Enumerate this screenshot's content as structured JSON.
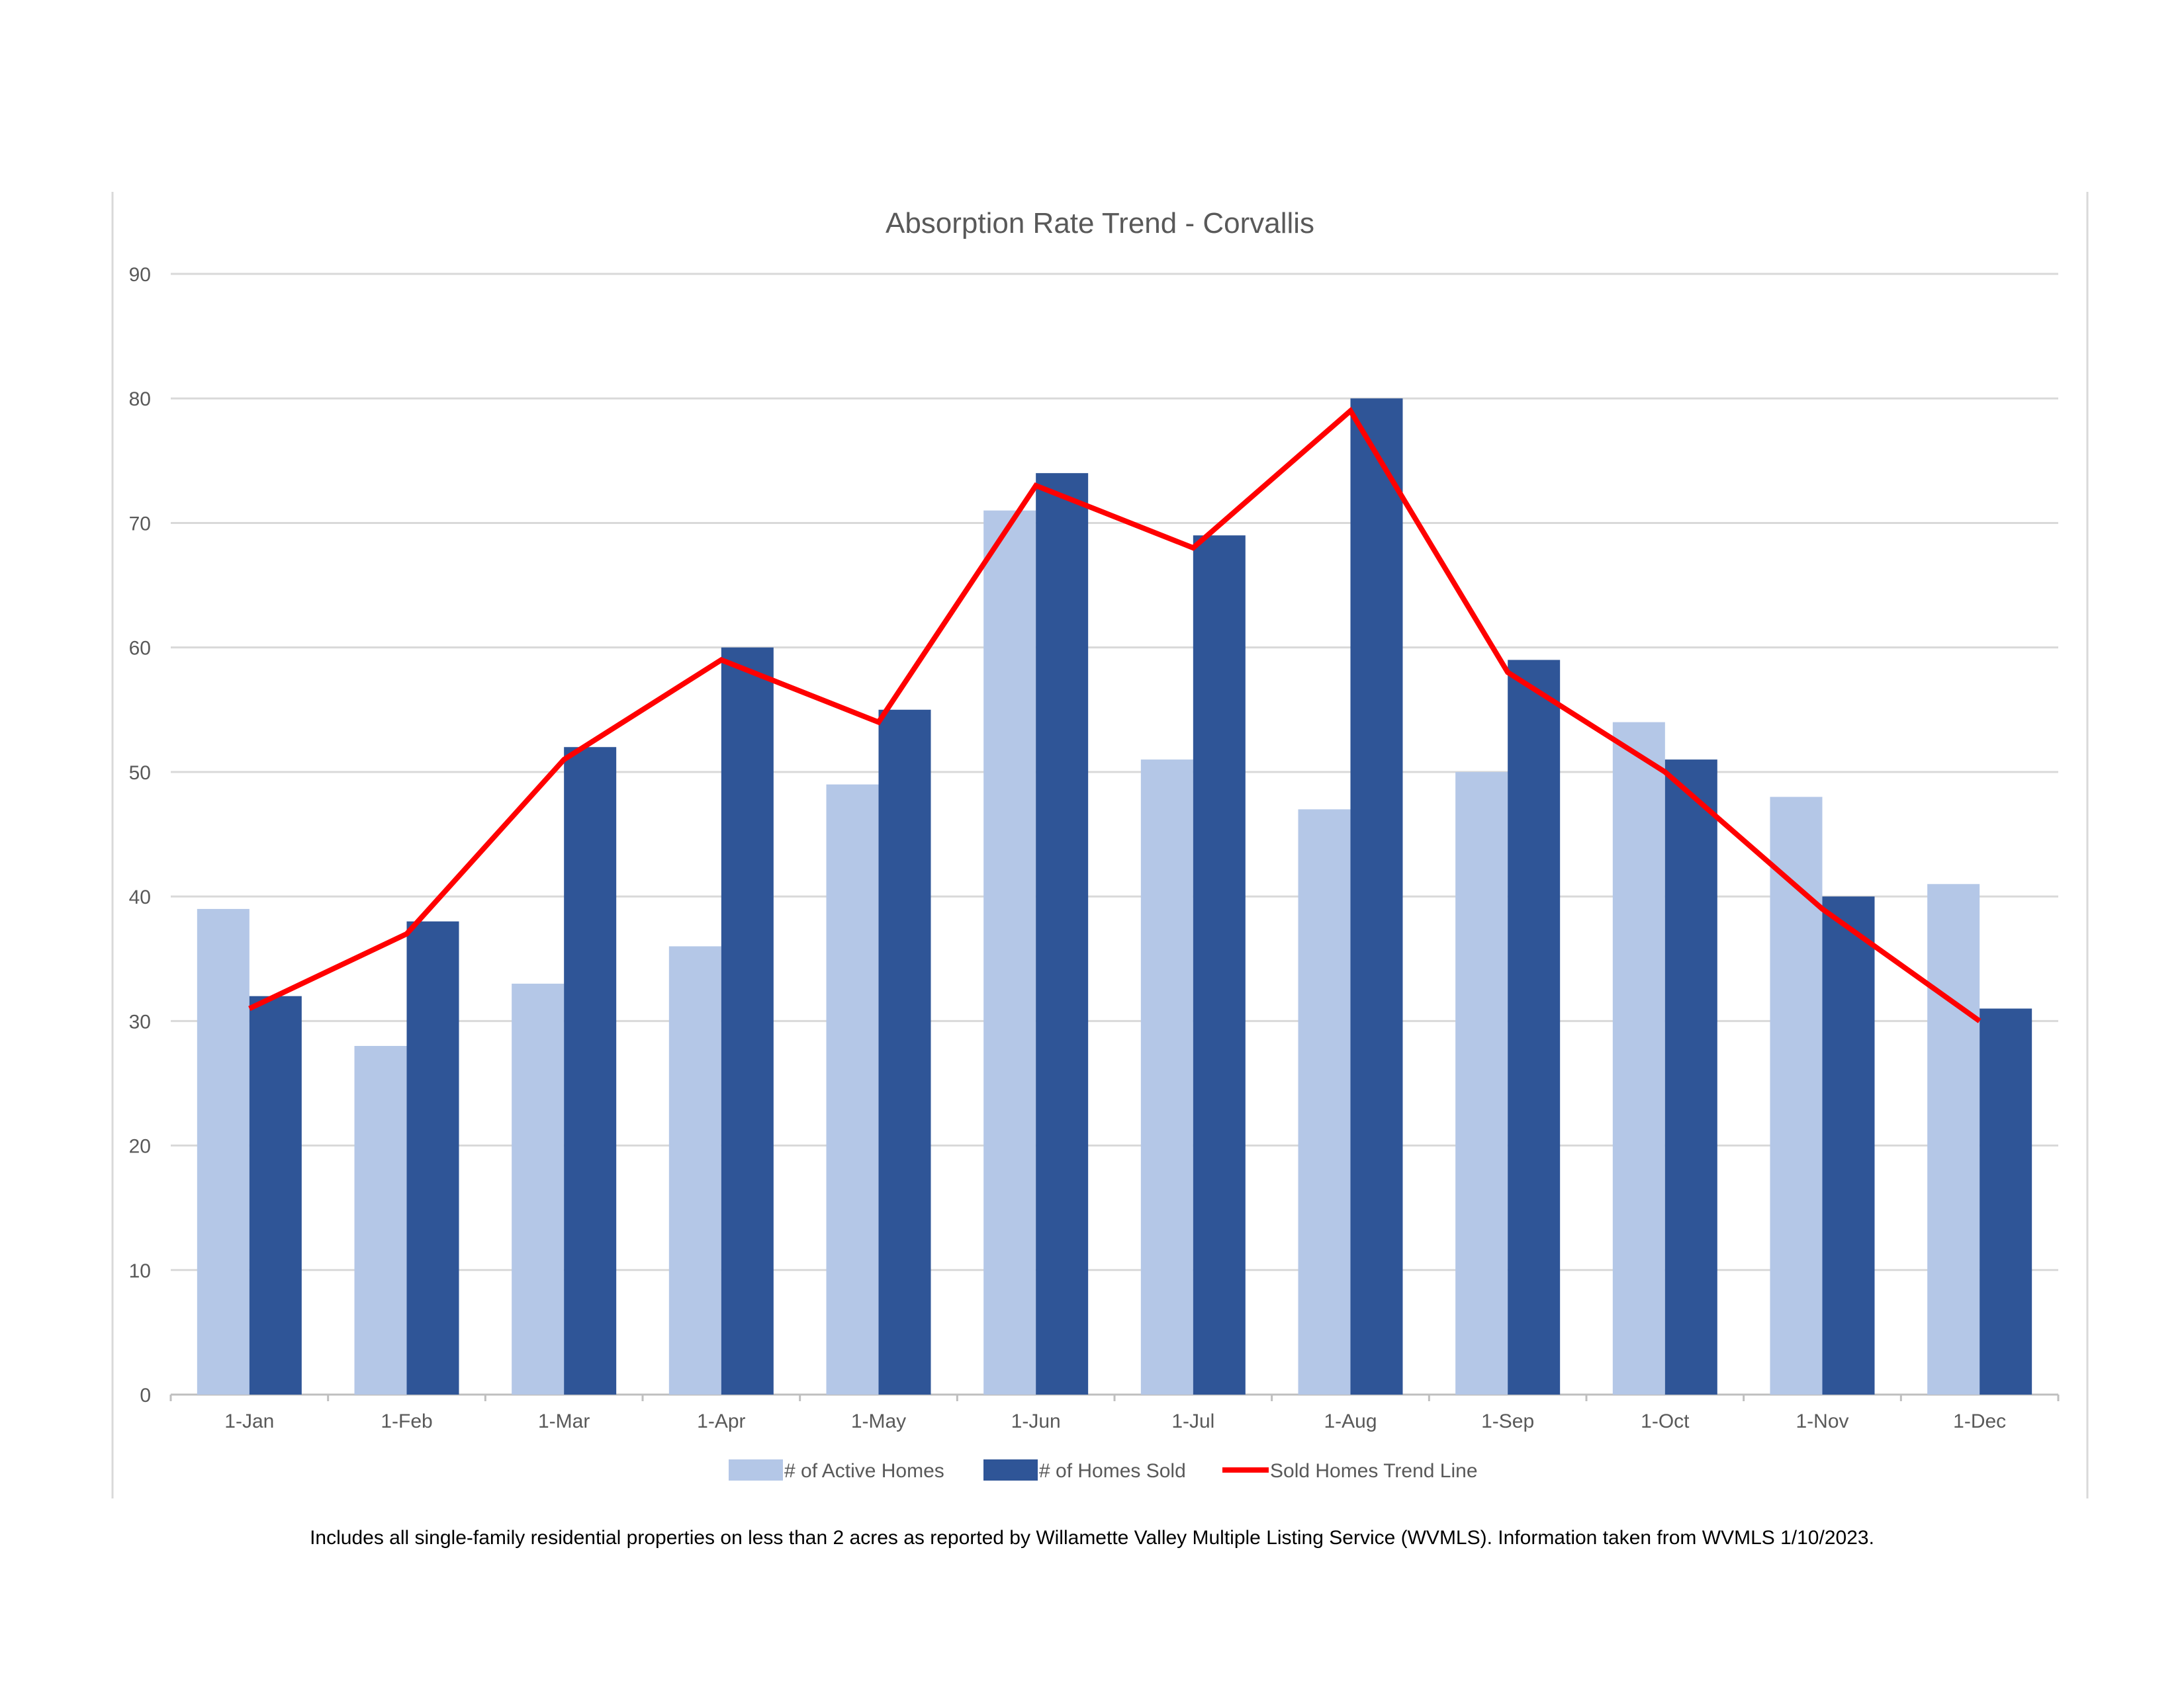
{
  "chart_data": {
    "type": "bar",
    "title": "Absorption Rate Trend - Corvallis",
    "categories": [
      "1-Jan",
      "1-Feb",
      "1-Mar",
      "1-Apr",
      "1-May",
      "1-Jun",
      "1-Jul",
      "1-Aug",
      "1-Sep",
      "1-Oct",
      "1-Nov",
      "1-Dec"
    ],
    "series": [
      {
        "name": "# of Active Homes",
        "kind": "bar",
        "color": "#b4c7e7",
        "values": [
          39,
          28,
          33,
          36,
          49,
          71,
          51,
          47,
          50,
          54,
          48,
          41
        ]
      },
      {
        "name": "# of Homes Sold",
        "kind": "bar",
        "color": "#2f5597",
        "values": [
          32,
          38,
          52,
          60,
          55,
          74,
          69,
          80,
          59,
          51,
          40,
          31
        ]
      },
      {
        "name": "Sold Homes Trend Line",
        "kind": "line",
        "color": "#ff0000",
        "values": [
          31,
          37,
          51,
          59,
          54,
          73,
          68,
          79,
          58,
          50,
          39,
          30
        ]
      }
    ],
    "ylim": [
      0,
      90
    ],
    "yticks": [
      "0",
      "10",
      "20",
      "30",
      "40",
      "50",
      "60",
      "70",
      "80",
      "90"
    ],
    "grid": true,
    "legend": "bottom"
  },
  "footnote": "Includes all single-family residential properties on less than 2 acres as reported by Willamette Valley Multiple Listing Service (WVMLS). Information taken from WVMLS 1/10/2023."
}
